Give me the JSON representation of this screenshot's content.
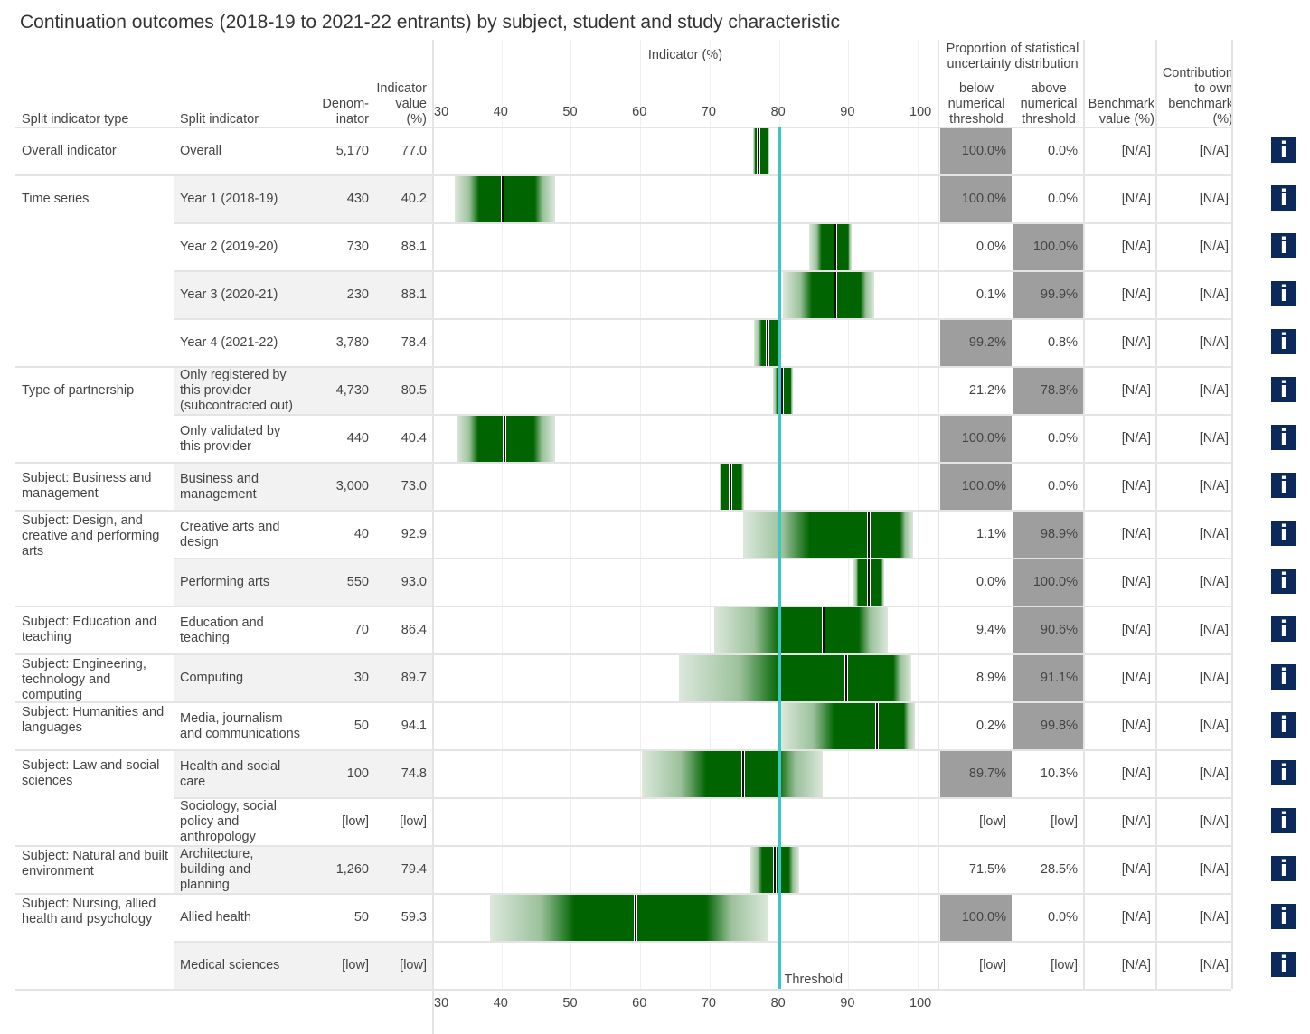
{
  "title": "Continuation outcomes (2018-19 to 2021-22 entrants) by subject, student and study characteristic",
  "headers": {
    "split_type": "Split indicator type",
    "split": "Split indicator",
    "denominator": "Denom-\ninator",
    "indicator": "Indicator\nvalue\n(%)",
    "chart": "Indicator (%)",
    "proportion": "Proportion of statistical\nuncertainty distribution",
    "below": "below\nnumerical\nthreshold",
    "above": "above\nnumerical\nthreshold",
    "benchmark": "Benchmark\nvalue (%)",
    "contribution": "Contribution\nto own\nbenchmark\n(%)"
  },
  "colors": {
    "core": "#006400",
    "threshold": "#3cc6c6",
    "highlight": "#9e9e9e",
    "info": "#0b2a5b",
    "row_alt": "#f2f2f2"
  },
  "info_icon": "info-icon",
  "chart_data": {
    "type": "interval",
    "xlim": [
      30,
      100
    ],
    "xticks": [
      30,
      40,
      50,
      60,
      70,
      80,
      90,
      100
    ],
    "xlabel": "Indicator (%)",
    "threshold": 80,
    "threshold_label": "Threshold",
    "grid": true
  },
  "rows": [
    {
      "type": "Overall indicator",
      "split": "Overall",
      "denom": "5,170",
      "value": "77.0",
      "v": 77.0,
      "core": [
        76.6,
        78.4
      ],
      "outer": [
        76.3,
        78.6
      ],
      "below": "100.0%",
      "above": "0.0%",
      "hl": "below",
      "bench": "[N/A]",
      "contrib": "[N/A]"
    },
    {
      "type": "Time series",
      "split": "Year 1 (2018-19)",
      "denom": "430",
      "value": "40.2",
      "v": 40.2,
      "core": [
        36.8,
        44.8
      ],
      "outer": [
        33.3,
        47.7
      ],
      "below": "100.0%",
      "above": "0.0%",
      "hl": "below",
      "bench": "[N/A]",
      "contrib": "[N/A]"
    },
    {
      "type": "",
      "split": "Year 2 (2019-20)",
      "denom": "730",
      "value": "88.1",
      "v": 88.1,
      "core": [
        86.2,
        90.0
      ],
      "outer": [
        84.4,
        90.5
      ],
      "below": "0.0%",
      "above": "100.0%",
      "hl": "above",
      "bench": "[N/A]",
      "contrib": "[N/A]"
    },
    {
      "type": "",
      "split": "Year 3 (2020-21)",
      "denom": "230",
      "value": "88.1",
      "v": 88.1,
      "core": [
        84.8,
        91.8
      ],
      "outer": [
        80.6,
        93.8
      ],
      "below": "0.1%",
      "above": "99.9%",
      "hl": "above",
      "bench": "[N/A]",
      "contrib": "[N/A]"
    },
    {
      "type": "",
      "split": "Year 4 (2021-22)",
      "denom": "3,780",
      "value": "78.4",
      "v": 78.4,
      "core": [
        77.5,
        79.8
      ],
      "outer": [
        76.4,
        80.3
      ],
      "below": "99.2%",
      "above": "0.8%",
      "hl": "below",
      "bench": "[N/A]",
      "contrib": "[N/A]"
    },
    {
      "type": "Type of partnership",
      "split": "Only registered by this provider (subcontracted out)",
      "denom": "4,730",
      "value": "80.5",
      "v": 80.5,
      "core": [
        79.8,
        81.7
      ],
      "outer": [
        79.2,
        82.0
      ],
      "below": "21.2%",
      "above": "78.8%",
      "hl": "above",
      "bench": "[N/A]",
      "contrib": "[N/A]"
    },
    {
      "type": "",
      "split": "Only validated by this provider",
      "denom": "440",
      "value": "40.4",
      "v": 40.4,
      "core": [
        36.6,
        44.6
      ],
      "outer": [
        33.5,
        47.7
      ],
      "below": "100.0%",
      "above": "0.0%",
      "hl": "below",
      "bench": "[N/A]",
      "contrib": "[N/A]"
    },
    {
      "type": "Subject: Business and management",
      "split": "Business and management",
      "denom": "3,000",
      "value": "73.0",
      "v": 73.0,
      "core": [
        71.7,
        74.6
      ],
      "outer": [
        71.5,
        75.0
      ],
      "below": "100.0%",
      "above": "0.0%",
      "hl": "below",
      "bench": "[N/A]",
      "contrib": "[N/A]"
    },
    {
      "type": "Subject: Design, and creative and performing arts",
      "split": "Creative arts and design",
      "denom": "40",
      "value": "92.9",
      "v": 92.9,
      "core": [
        84.5,
        97.5
      ],
      "outer": [
        74.9,
        99.4
      ],
      "below": "1.1%",
      "above": "98.9%",
      "hl": "above",
      "bench": "[N/A]",
      "contrib": "[N/A]"
    },
    {
      "type": "",
      "split": "Performing arts",
      "denom": "550",
      "value": "93.0",
      "v": 93.0,
      "core": [
        91.5,
        94.8
      ],
      "outer": [
        90.8,
        95.2
      ],
      "below": "0.0%",
      "above": "100.0%",
      "hl": "above",
      "bench": "[N/A]",
      "contrib": "[N/A]"
    },
    {
      "type": "Subject: Education and teaching",
      "split": "Education and teaching",
      "denom": "70",
      "value": "86.4",
      "v": 86.4,
      "core": [
        80.2,
        91.5
      ],
      "outer": [
        70.7,
        95.7
      ],
      "below": "9.4%",
      "above": "90.6%",
      "hl": "above",
      "bench": "[N/A]",
      "contrib": "[N/A]"
    },
    {
      "type": "Subject: Engineering, technology and computing",
      "split": "Computing",
      "denom": "30",
      "value": "89.7",
      "v": 89.7,
      "core": [
        80.2,
        96.5
      ],
      "outer": [
        65.6,
        99.1
      ],
      "below": "8.9%",
      "above": "91.1%",
      "hl": "above",
      "bench": "[N/A]",
      "contrib": "[N/A]"
    },
    {
      "type": "Subject: Humanities and languages",
      "split": "Media, journalism and communications",
      "denom": "50",
      "value": "94.1",
      "v": 94.1,
      "core": [
        88.0,
        98.0
      ],
      "outer": [
        80.3,
        99.6
      ],
      "below": "0.2%",
      "above": "99.8%",
      "hl": "above",
      "bench": "[N/A]",
      "contrib": "[N/A]"
    },
    {
      "type": "Subject: Law and social sciences",
      "split": "Health and social care",
      "denom": "100",
      "value": "74.8",
      "v": 74.8,
      "core": [
        69.5,
        79.8
      ],
      "outer": [
        60.2,
        86.3
      ],
      "below": "89.7%",
      "above": "10.3%",
      "hl": "below",
      "bench": "[N/A]",
      "contrib": "[N/A]"
    },
    {
      "type": "",
      "split": "Sociology, social policy and anthropology",
      "denom": "[low]",
      "value": "[low]",
      "v": null,
      "core": null,
      "outer": null,
      "below": "[low]",
      "above": "[low]",
      "hl": "",
      "bench": "[N/A]",
      "contrib": "[N/A]"
    },
    {
      "type": "Subject: Natural and built environment",
      "split": "Architecture, building and planning",
      "denom": "1,260",
      "value": "79.4",
      "v": 79.4,
      "core": [
        77.6,
        81.4
      ],
      "outer": [
        75.9,
        82.9
      ],
      "below": "71.5%",
      "above": "28.5%",
      "hl": "",
      "bench": "[N/A]",
      "contrib": "[N/A]"
    },
    {
      "type": "Subject: Nursing, allied health and psychology",
      "split": "Allied health",
      "denom": "50",
      "value": "59.3",
      "v": 59.3,
      "core": [
        50.5,
        69.5
      ],
      "outer": [
        38.3,
        78.5
      ],
      "below": "100.0%",
      "above": "0.0%",
      "hl": "below",
      "bench": "[N/A]",
      "contrib": "[N/A]"
    },
    {
      "type": "",
      "split": "Medical sciences",
      "denom": "[low]",
      "value": "[low]",
      "v": null,
      "core": null,
      "outer": null,
      "below": "[low]",
      "above": "[low]",
      "hl": "",
      "bench": "[N/A]",
      "contrib": "[N/A]"
    }
  ]
}
